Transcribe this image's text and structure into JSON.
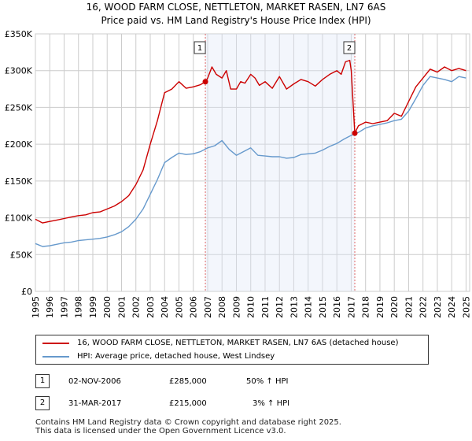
{
  "title_line1": "16, WOOD FARM CLOSE, NETTLETON, MARKET RASEN, LN7 6AS",
  "title_line2": "Price paid vs. HM Land Registry's House Price Index (HPI)",
  "chart_data": {
    "type": "line",
    "title": "16, WOOD FARM CLOSE, NETTLETON, MARKET RASEN, LN7 6AS",
    "subtitle": "Price paid vs. HM Land Registry's House Price Index (HPI)",
    "xlabel": "",
    "ylabel": "",
    "xlim": [
      1995,
      2025.25
    ],
    "ylim": [
      0,
      350000
    ],
    "grid": true,
    "x_ticks": [
      1995,
      1996,
      1997,
      1998,
      1999,
      2000,
      2001,
      2002,
      2003,
      2004,
      2005,
      2006,
      2007,
      2008,
      2009,
      2010,
      2011,
      2012,
      2013,
      2014,
      2015,
      2016,
      2017,
      2018,
      2019,
      2020,
      2021,
      2022,
      2023,
      2024,
      2025
    ],
    "y_ticks": [
      0,
      50000,
      100000,
      150000,
      200000,
      250000,
      300000,
      350000
    ],
    "y_tick_labels": [
      "£0",
      "£50K",
      "£100K",
      "£150K",
      "£200K",
      "£250K",
      "£300K",
      "£350K"
    ],
    "series": [
      {
        "name": "16, WOOD FARM CLOSE, NETTLETON, MARKET RASEN, LN7 6AS (detached house)",
        "color": "#cc0000",
        "x": [
          1995.0,
          1995.5,
          1996.0,
          1996.5,
          1997.0,
          1997.5,
          1998.0,
          1998.5,
          1999.0,
          1999.5,
          2000.0,
          2000.5,
          2001.0,
          2001.5,
          2002.0,
          2002.5,
          2003.0,
          2003.5,
          2004.0,
          2004.5,
          2005.0,
          2005.5,
          2006.0,
          2006.5,
          2006.84,
          2007.0,
          2007.3,
          2007.6,
          2008.0,
          2008.3,
          2008.6,
          2009.0,
          2009.3,
          2009.6,
          2010.0,
          2010.3,
          2010.6,
          2011.0,
          2011.5,
          2012.0,
          2012.5,
          2013.0,
          2013.5,
          2014.0,
          2014.5,
          2015.0,
          2015.5,
          2016.0,
          2016.3,
          2016.6,
          2016.9,
          2017.0,
          2017.25,
          2017.5,
          2018.0,
          2018.5,
          2019.0,
          2019.5,
          2020.0,
          2020.5,
          2021.0,
          2021.5,
          2022.0,
          2022.5,
          2023.0,
          2023.5,
          2024.0,
          2024.5,
          2025.0
        ],
        "y": [
          98000,
          93000,
          95000,
          97000,
          99000,
          101000,
          103000,
          104000,
          107000,
          108000,
          112000,
          116000,
          122000,
          130000,
          145000,
          165000,
          200000,
          232000,
          270000,
          275000,
          285000,
          276000,
          278000,
          281000,
          285000,
          290000,
          305000,
          295000,
          290000,
          300000,
          275000,
          275000,
          285000,
          283000,
          295000,
          290000,
          280000,
          285000,
          276000,
          292000,
          275000,
          282000,
          288000,
          285000,
          279000,
          288000,
          295000,
          300000,
          295000,
          312000,
          314000,
          300000,
          215000,
          225000,
          230000,
          228000,
          230000,
          232000,
          242000,
          238000,
          258000,
          278000,
          290000,
          302000,
          298000,
          305000,
          300000,
          303000,
          300000
        ]
      },
      {
        "name": "HPI: Average price, detached house, West Lindsey",
        "color": "#6699cc",
        "x": [
          1995.0,
          1995.5,
          1996.0,
          1996.5,
          1997.0,
          1997.5,
          1998.0,
          1998.5,
          1999.0,
          1999.5,
          2000.0,
          2000.5,
          2001.0,
          2001.5,
          2002.0,
          2002.5,
          2003.0,
          2003.5,
          2004.0,
          2004.5,
          2005.0,
          2005.5,
          2006.0,
          2006.5,
          2007.0,
          2007.5,
          2008.0,
          2008.5,
          2009.0,
          2009.5,
          2010.0,
          2010.5,
          2011.0,
          2011.5,
          2012.0,
          2012.5,
          2013.0,
          2013.5,
          2014.0,
          2014.5,
          2015.0,
          2015.5,
          2016.0,
          2016.5,
          2017.0,
          2017.5,
          2018.0,
          2018.5,
          2019.0,
          2019.5,
          2020.0,
          2020.5,
          2021.0,
          2021.5,
          2022.0,
          2022.5,
          2023.0,
          2023.5,
          2024.0,
          2024.5,
          2025.0
        ],
        "y": [
          65000,
          61000,
          62000,
          64000,
          66000,
          67000,
          69000,
          70000,
          71000,
          72000,
          74000,
          77000,
          81000,
          88000,
          98000,
          112000,
          132000,
          152000,
          175000,
          182000,
          188000,
          186000,
          187000,
          190000,
          195000,
          198000,
          205000,
          193000,
          185000,
          190000,
          195000,
          185000,
          184000,
          183000,
          183000,
          181000,
          182000,
          186000,
          187000,
          188000,
          192000,
          197000,
          201000,
          207000,
          212000,
          216000,
          222000,
          225000,
          227000,
          229000,
          232000,
          234000,
          245000,
          262000,
          280000,
          292000,
          290000,
          288000,
          285000,
          292000,
          290000
        ]
      }
    ],
    "annotations": [
      {
        "label": "1",
        "x": 2006.84,
        "y": 285000,
        "date": "02-NOV-2006",
        "price": "£285,000",
        "hpi": "50% ↑ HPI"
      },
      {
        "label": "2",
        "x": 2017.25,
        "y": 215000,
        "date": "31-MAR-2017",
        "price": "£215,000",
        "hpi": "3% ↑ HPI"
      }
    ]
  },
  "legend": {
    "items": [
      {
        "label": "16, WOOD FARM CLOSE, NETTLETON, MARKET RASEN, LN7 6AS (detached house)",
        "color": "#cc0000"
      },
      {
        "label": "HPI: Average price, detached house, West Lindsey",
        "color": "#6699cc"
      }
    ]
  },
  "table": {
    "rows": [
      {
        "num": "1",
        "date": "02-NOV-2006",
        "price": "£285,000",
        "hpi": "50% ↑ HPI"
      },
      {
        "num": "2",
        "date": "31-MAR-2017",
        "price": "£215,000",
        "hpi": "3% ↑ HPI"
      }
    ]
  },
  "footer": {
    "line1": "Contains HM Land Registry data © Crown copyright and database right 2025.",
    "line2": "This data is licensed under the Open Government Licence v3.0."
  }
}
